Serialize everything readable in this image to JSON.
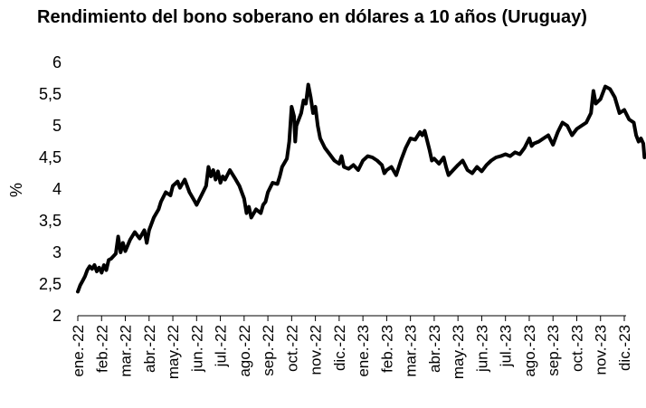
{
  "chart_data": {
    "type": "line",
    "title": "Rendimiento del bono soberano en dólares a 10 años (Uruguay)",
    "xlabel": "",
    "ylabel": "%",
    "ylim": [
      2,
      6
    ],
    "yticks": [
      "2",
      "2,5",
      "3",
      "3,5",
      "4",
      "4,5",
      "5",
      "5,5",
      "6"
    ],
    "categories": [
      "ene.-22",
      "feb.-22",
      "mar.-22",
      "abr.-22",
      "may.-22",
      "jun.-22",
      "jul.-22",
      "ago.-22",
      "sep.-22",
      "oct.-22",
      "nov.-22",
      "dic.-22",
      "ene.-23",
      "feb.-23",
      "mar.-23",
      "abr.-23",
      "may.-23",
      "jun.-23",
      "jul.-23",
      "ago.-23",
      "sep.-23",
      "oct.-23",
      "nov.-23",
      "dic.-23"
    ],
    "grid": false,
    "legend": "none",
    "line_color": "#000000",
    "series": [
      {
        "values": [
          [
            0.0,
            2.38
          ],
          [
            0.1,
            2.48
          ],
          [
            0.2,
            2.55
          ],
          [
            0.3,
            2.62
          ],
          [
            0.4,
            2.72
          ],
          [
            0.5,
            2.78
          ],
          [
            0.6,
            2.74
          ],
          [
            0.7,
            2.8
          ],
          [
            0.8,
            2.7
          ],
          [
            0.9,
            2.76
          ],
          [
            1.0,
            2.68
          ],
          [
            1.1,
            2.8
          ],
          [
            1.2,
            2.72
          ],
          [
            1.3,
            2.88
          ],
          [
            1.4,
            2.9
          ],
          [
            1.5,
            2.94
          ],
          [
            1.6,
            2.98
          ],
          [
            1.7,
            3.25
          ],
          [
            1.8,
            3.0
          ],
          [
            1.9,
            3.15
          ],
          [
            2.0,
            3.02
          ],
          [
            2.2,
            3.2
          ],
          [
            2.4,
            3.32
          ],
          [
            2.6,
            3.22
          ],
          [
            2.8,
            3.35
          ],
          [
            2.9,
            3.15
          ],
          [
            3.0,
            3.35
          ],
          [
            3.2,
            3.55
          ],
          [
            3.4,
            3.68
          ],
          [
            3.5,
            3.8
          ],
          [
            3.7,
            3.95
          ],
          [
            3.9,
            3.9
          ],
          [
            4.0,
            4.05
          ],
          [
            4.2,
            4.12
          ],
          [
            4.3,
            4.02
          ],
          [
            4.5,
            4.15
          ],
          [
            4.7,
            3.95
          ],
          [
            4.9,
            3.82
          ],
          [
            5.0,
            3.75
          ],
          [
            5.2,
            3.9
          ],
          [
            5.4,
            4.05
          ],
          [
            5.5,
            4.35
          ],
          [
            5.6,
            4.2
          ],
          [
            5.7,
            4.3
          ],
          [
            5.8,
            4.15
          ],
          [
            5.9,
            4.28
          ],
          [
            6.0,
            4.1
          ],
          [
            6.1,
            4.2
          ],
          [
            6.2,
            4.15
          ],
          [
            6.4,
            4.3
          ],
          [
            6.6,
            4.18
          ],
          [
            6.8,
            4.05
          ],
          [
            7.0,
            3.85
          ],
          [
            7.1,
            3.62
          ],
          [
            7.2,
            3.72
          ],
          [
            7.3,
            3.55
          ],
          [
            7.5,
            3.68
          ],
          [
            7.7,
            3.62
          ],
          [
            7.8,
            3.75
          ],
          [
            7.9,
            3.8
          ],
          [
            8.0,
            3.95
          ],
          [
            8.2,
            4.1
          ],
          [
            8.4,
            4.08
          ],
          [
            8.5,
            4.2
          ],
          [
            8.6,
            4.35
          ],
          [
            8.8,
            4.48
          ],
          [
            8.9,
            4.75
          ],
          [
            9.0,
            5.3
          ],
          [
            9.1,
            5.15
          ],
          [
            9.15,
            4.75
          ],
          [
            9.2,
            5.0
          ],
          [
            9.4,
            5.2
          ],
          [
            9.5,
            5.4
          ],
          [
            9.6,
            5.35
          ],
          [
            9.7,
            5.65
          ],
          [
            9.8,
            5.45
          ],
          [
            9.9,
            5.2
          ],
          [
            10.0,
            5.3
          ],
          [
            10.1,
            5.0
          ],
          [
            10.2,
            4.8
          ],
          [
            10.4,
            4.65
          ],
          [
            10.6,
            4.55
          ],
          [
            10.8,
            4.45
          ],
          [
            11.0,
            4.4
          ],
          [
            11.1,
            4.52
          ],
          [
            11.2,
            4.35
          ],
          [
            11.4,
            4.32
          ],
          [
            11.6,
            4.38
          ],
          [
            11.8,
            4.3
          ],
          [
            12.0,
            4.45
          ],
          [
            12.2,
            4.52
          ],
          [
            12.4,
            4.5
          ],
          [
            12.6,
            4.45
          ],
          [
            12.8,
            4.38
          ],
          [
            12.9,
            4.25
          ],
          [
            13.0,
            4.3
          ],
          [
            13.2,
            4.35
          ],
          [
            13.4,
            4.22
          ],
          [
            13.6,
            4.45
          ],
          [
            13.8,
            4.65
          ],
          [
            14.0,
            4.8
          ],
          [
            14.2,
            4.78
          ],
          [
            14.4,
            4.9
          ],
          [
            14.5,
            4.85
          ],
          [
            14.6,
            4.92
          ],
          [
            14.8,
            4.62
          ],
          [
            14.9,
            4.45
          ],
          [
            15.0,
            4.48
          ],
          [
            15.2,
            4.4
          ],
          [
            15.4,
            4.5
          ],
          [
            15.5,
            4.35
          ],
          [
            15.6,
            4.22
          ],
          [
            15.8,
            4.3
          ],
          [
            16.0,
            4.38
          ],
          [
            16.2,
            4.45
          ],
          [
            16.4,
            4.3
          ],
          [
            16.6,
            4.25
          ],
          [
            16.8,
            4.35
          ],
          [
            17.0,
            4.28
          ],
          [
            17.2,
            4.38
          ],
          [
            17.4,
            4.45
          ],
          [
            17.6,
            4.5
          ],
          [
            17.8,
            4.52
          ],
          [
            18.0,
            4.55
          ],
          [
            18.2,
            4.52
          ],
          [
            18.4,
            4.58
          ],
          [
            18.6,
            4.55
          ],
          [
            18.8,
            4.65
          ],
          [
            19.0,
            4.8
          ],
          [
            19.1,
            4.68
          ],
          [
            19.2,
            4.72
          ],
          [
            19.4,
            4.75
          ],
          [
            19.6,
            4.8
          ],
          [
            19.8,
            4.85
          ],
          [
            20.0,
            4.7
          ],
          [
            20.2,
            4.9
          ],
          [
            20.4,
            5.05
          ],
          [
            20.6,
            5.0
          ],
          [
            20.8,
            4.85
          ],
          [
            21.0,
            4.95
          ],
          [
            21.2,
            5.0
          ],
          [
            21.4,
            5.05
          ],
          [
            21.6,
            5.2
          ],
          [
            21.7,
            5.55
          ],
          [
            21.8,
            5.35
          ],
          [
            22.0,
            5.42
          ],
          [
            22.2,
            5.62
          ],
          [
            22.4,
            5.58
          ],
          [
            22.6,
            5.45
          ],
          [
            22.8,
            5.2
          ],
          [
            23.0,
            5.25
          ],
          [
            23.2,
            5.1
          ],
          [
            23.4,
            5.05
          ],
          [
            23.5,
            4.85
          ],
          [
            23.6,
            4.75
          ],
          [
            23.7,
            4.8
          ],
          [
            23.8,
            4.72
          ],
          [
            23.85,
            4.5
          ]
        ]
      }
    ]
  }
}
